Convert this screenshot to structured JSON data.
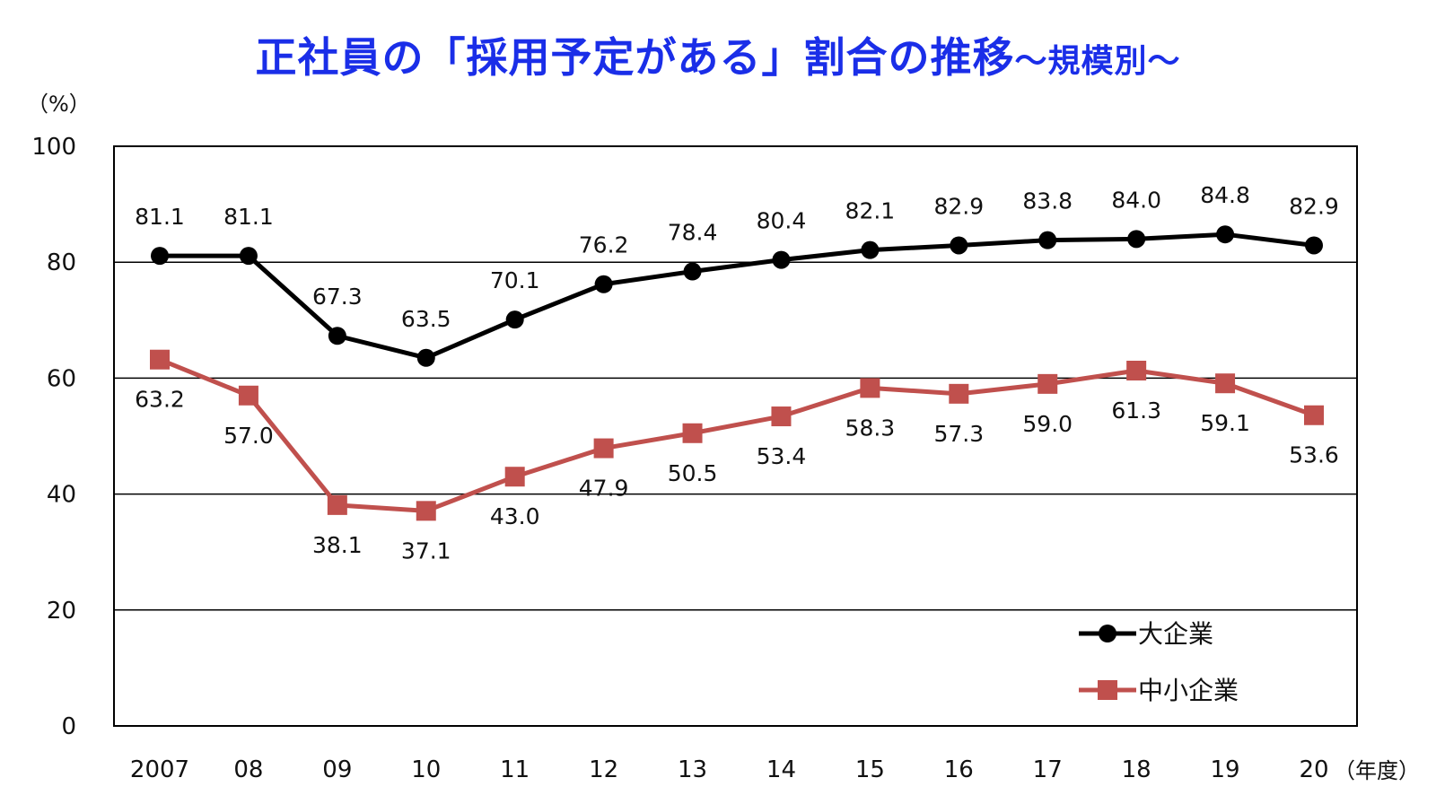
{
  "chart_data": {
    "type": "line",
    "title": "正社員の「採用予定がある」割合の推移",
    "subtitle": "～規模別～",
    "y_unit": "（%）",
    "x_unit": "（年度）",
    "categories": [
      "2007",
      "08",
      "09",
      "10",
      "11",
      "12",
      "13",
      "14",
      "15",
      "16",
      "17",
      "18",
      "19",
      "20"
    ],
    "ylim": [
      0,
      100
    ],
    "yticks": [
      0,
      20,
      40,
      60,
      80,
      100
    ],
    "grid": true,
    "legend_position": "bottom-right",
    "series": [
      {
        "name": "大企業",
        "color": "#000000",
        "marker": "circle",
        "values": [
          81.1,
          81.1,
          67.3,
          63.5,
          70.1,
          76.2,
          78.4,
          80.4,
          82.1,
          82.9,
          83.8,
          84.0,
          84.8,
          82.9
        ],
        "labels": [
          "81.1",
          "81.1",
          "67.3",
          "63.5",
          "70.1",
          "76.2",
          "78.4",
          "80.4",
          "82.1",
          "82.9",
          "83.8",
          "84.0",
          "84.8",
          "82.9"
        ],
        "label_side": "above"
      },
      {
        "name": "中小企業",
        "color": "#c0504d",
        "marker": "square",
        "values": [
          63.2,
          57.0,
          38.1,
          37.1,
          43.0,
          47.9,
          50.5,
          53.4,
          58.3,
          57.3,
          59.0,
          61.3,
          59.1,
          53.6
        ],
        "labels": [
          "63.2",
          "57.0",
          "38.1",
          "37.1",
          "43.0",
          "47.9",
          "50.5",
          "53.4",
          "58.3",
          "57.3",
          "59.0",
          "61.3",
          "59.1",
          "53.6"
        ],
        "label_side": "below"
      }
    ]
  }
}
